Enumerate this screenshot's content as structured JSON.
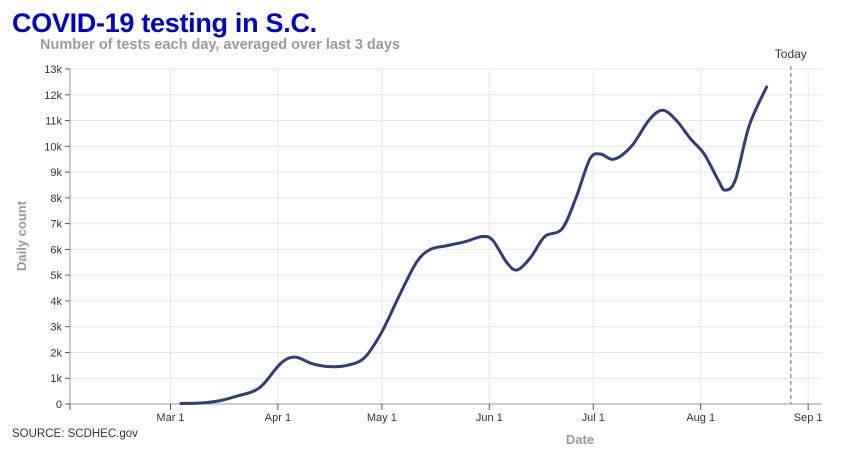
{
  "chart_data": {
    "type": "line",
    "title": "COVID-19 testing in S.C.",
    "subtitle": "Number of tests each day, averaged over last 3 days",
    "xlabel": "Date",
    "ylabel": "Daily count",
    "source": "SOURCE: SCDHEC.gov",
    "annotation": {
      "label": "Today",
      "date": "2020-08-27"
    },
    "x_ticks": [
      {
        "date": "2020-02-01",
        "label": ""
      },
      {
        "date": "2020-03-01",
        "label": "Mar 1"
      },
      {
        "date": "2020-04-01",
        "label": "Apr 1"
      },
      {
        "date": "2020-05-01",
        "label": "May 1"
      },
      {
        "date": "2020-06-01",
        "label": "Jun 1"
      },
      {
        "date": "2020-07-01",
        "label": "Jul 1"
      },
      {
        "date": "2020-08-01",
        "label": "Aug 1"
      },
      {
        "date": "2020-09-01",
        "label": "Sep 1"
      }
    ],
    "y_ticks": [
      {
        "value": 0,
        "label": "0"
      },
      {
        "value": 1000,
        "label": "1k"
      },
      {
        "value": 2000,
        "label": "2k"
      },
      {
        "value": 3000,
        "label": "3k"
      },
      {
        "value": 4000,
        "label": "4k"
      },
      {
        "value": 5000,
        "label": "5k"
      },
      {
        "value": 6000,
        "label": "6k"
      },
      {
        "value": 7000,
        "label": "7k"
      },
      {
        "value": 8000,
        "label": "8k"
      },
      {
        "value": 9000,
        "label": "9k"
      },
      {
        "value": 10000,
        "label": "10k"
      },
      {
        "value": 11000,
        "label": "11k"
      },
      {
        "value": 12000,
        "label": "12k"
      },
      {
        "value": 13000,
        "label": "13k"
      }
    ],
    "xlim": [
      "2020-02-01",
      "2020-09-05"
    ],
    "ylim": [
      0,
      13000
    ],
    "grid": true,
    "line_color": "#2f3e78",
    "series": [
      {
        "values": [
          {
            "x": "2020-03-04",
            "y": 20
          },
          {
            "x": "2020-03-10",
            "y": 40
          },
          {
            "x": "2020-03-15",
            "y": 120
          },
          {
            "x": "2020-03-20",
            "y": 300
          },
          {
            "x": "2020-03-25",
            "y": 500
          },
          {
            "x": "2020-03-28",
            "y": 800
          },
          {
            "x": "2020-04-02",
            "y": 1600
          },
          {
            "x": "2020-04-06",
            "y": 1820
          },
          {
            "x": "2020-04-11",
            "y": 1560
          },
          {
            "x": "2020-04-16",
            "y": 1450
          },
          {
            "x": "2020-04-21",
            "y": 1500
          },
          {
            "x": "2020-04-26",
            "y": 1800
          },
          {
            "x": "2020-05-01",
            "y": 2800
          },
          {
            "x": "2020-05-06",
            "y": 4200
          },
          {
            "x": "2020-05-11",
            "y": 5500
          },
          {
            "x": "2020-05-15",
            "y": 6000
          },
          {
            "x": "2020-05-20",
            "y": 6150
          },
          {
            "x": "2020-05-25",
            "y": 6300
          },
          {
            "x": "2020-05-30",
            "y": 6500
          },
          {
            "x": "2020-06-02",
            "y": 6350
          },
          {
            "x": "2020-06-06",
            "y": 5500
          },
          {
            "x": "2020-06-09",
            "y": 5200
          },
          {
            "x": "2020-06-13",
            "y": 5700
          },
          {
            "x": "2020-06-17",
            "y": 6500
          },
          {
            "x": "2020-06-22",
            "y": 6800
          },
          {
            "x": "2020-06-26",
            "y": 8000
          },
          {
            "x": "2020-06-30",
            "y": 9500
          },
          {
            "x": "2020-07-03",
            "y": 9700
          },
          {
            "x": "2020-07-07",
            "y": 9500
          },
          {
            "x": "2020-07-12",
            "y": 10000
          },
          {
            "x": "2020-07-17",
            "y": 11000
          },
          {
            "x": "2020-07-21",
            "y": 11400
          },
          {
            "x": "2020-07-25",
            "y": 11000
          },
          {
            "x": "2020-07-29",
            "y": 10300
          },
          {
            "x": "2020-08-02",
            "y": 9700
          },
          {
            "x": "2020-08-06",
            "y": 8700
          },
          {
            "x": "2020-08-08",
            "y": 8300
          },
          {
            "x": "2020-08-11",
            "y": 8700
          },
          {
            "x": "2020-08-15",
            "y": 10800
          },
          {
            "x": "2020-08-20",
            "y": 12300
          }
        ]
      }
    ]
  }
}
